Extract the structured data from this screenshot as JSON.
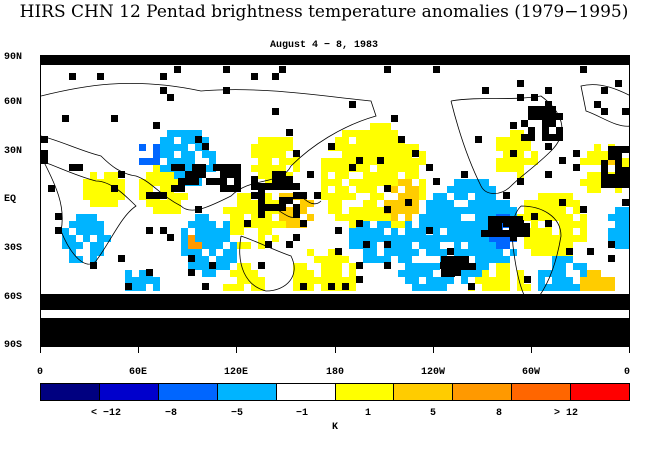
{
  "title": "HIRS CHN 12 Pentad brightness temperature anomalies (1979−1995)",
  "subtitle": "August 4 − 8, 1983",
  "axes": {
    "lat_labels": [
      "90N",
      "60N",
      "30N",
      "EQ",
      "30S",
      "60S",
      "90S"
    ],
    "lon_labels": [
      "0",
      "60E",
      "120E",
      "180",
      "120W",
      "60W",
      "0"
    ]
  },
  "colorbar": {
    "colors": [
      "#000080",
      "#0000cc",
      "#0066ff",
      "#00b4ff",
      "#ffffff",
      "#ffff00",
      "#ffcc00",
      "#ff9900",
      "#ff6600",
      "#ff0000"
    ],
    "labels": [
      "< −12",
      "−8",
      "−5",
      "−1",
      "1",
      "5",
      "8",
      "> 12"
    ],
    "units": "K"
  },
  "map": {
    "missing_data_color": "#000000",
    "coastline_color": "#000000"
  }
}
